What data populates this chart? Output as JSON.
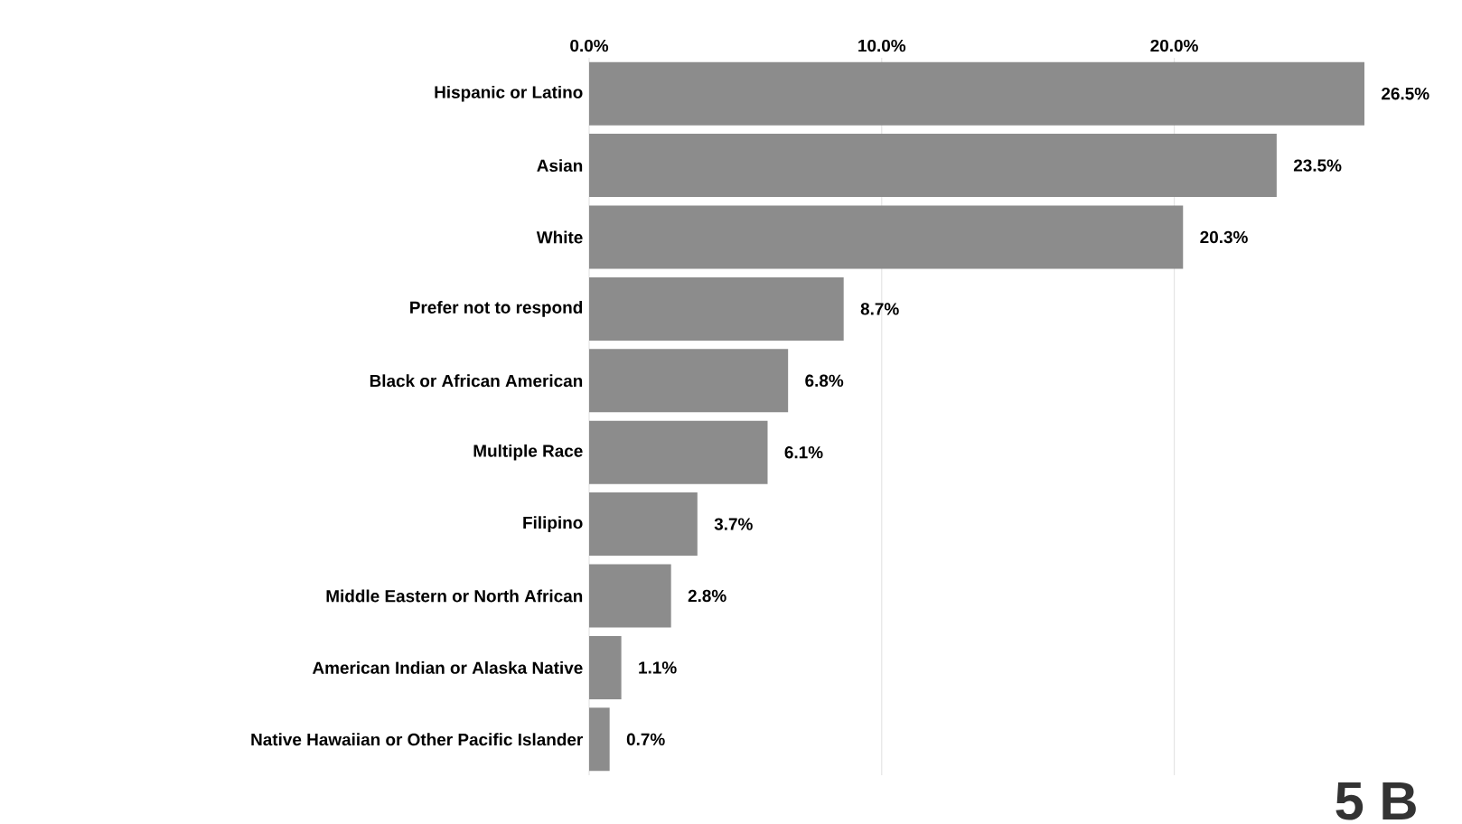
{
  "chart_data": {
    "type": "bar",
    "orientation": "horizontal",
    "categories": [
      "Hispanic or Latino",
      "Asian",
      "White",
      "Prefer not to respond",
      "Black or African American",
      "Multiple Race",
      "Filipino",
      "Middle Eastern or North African",
      "American Indian or Alaska Native",
      "Native Hawaiian or Other Pacific Islander"
    ],
    "values": [
      26.5,
      23.5,
      20.3,
      8.7,
      6.8,
      6.1,
      3.7,
      2.8,
      1.1,
      0.7
    ],
    "value_labels": [
      "26.5%",
      "23.5%",
      "20.3%",
      "8.7%",
      "6.8%",
      "6.1%",
      "3.7%",
      "2.8%",
      "1.1%",
      "0.7%"
    ],
    "color": "#8c8c8c",
    "xlim": [
      0,
      26.5
    ],
    "xticks": [
      {
        "value": 0,
        "label": "0.0%"
      },
      {
        "value": 10,
        "label": "10.0%"
      },
      {
        "value": 20,
        "label": "20.0%"
      }
    ],
    "grid": "x",
    "annotations": [
      "5 B"
    ]
  }
}
